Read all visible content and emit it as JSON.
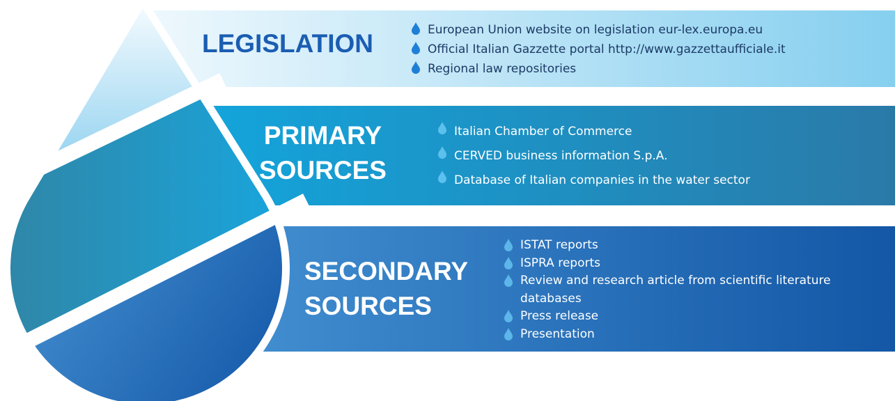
{
  "sections": [
    {
      "title_lines": [
        "LEGISLATION"
      ],
      "items": [
        "European Union website on legislation eur-lex.europa.eu",
        "Official Italian Gazzette portal http://www.gazzettaufficiale.it",
        "Regional law repositories"
      ],
      "bullet_color": "#1e7fd6"
    },
    {
      "title_lines": [
        "PRIMARY",
        "SOURCES"
      ],
      "items": [
        "Italian Chamber of Commerce",
        "CERVED business information S.p.A.",
        "Database of Italian companies in the water sector"
      ],
      "bullet_color": "#5cc0ee"
    },
    {
      "title_lines": [
        "SECONDARY",
        "SOURCES"
      ],
      "items": [
        "ISTAT reports",
        "ISPRA reports",
        "Review and research article from scientific literature databases",
        "Press release",
        "Presentation"
      ],
      "bullet_color": "#5cb6ea"
    }
  ]
}
